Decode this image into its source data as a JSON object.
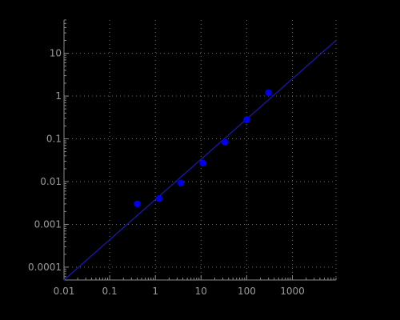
{
  "chart_data": {
    "type": "scatter",
    "title": "",
    "xlabel": "",
    "ylabel": "",
    "x_scale": "log",
    "y_scale": "log",
    "xlim": [
      0.01,
      9000
    ],
    "ylim": [
      5e-05,
      60
    ],
    "grid": true,
    "legend": "none",
    "x_ticks": [
      0.01,
      0.1,
      1,
      10,
      100,
      1000
    ],
    "x_tick_labels": [
      "0.01",
      "0.1",
      "1",
      "10",
      "100",
      "1000"
    ],
    "y_ticks": [
      0.0001,
      0.001,
      0.01,
      0.1,
      1,
      10
    ],
    "y_tick_labels": [
      "0.0001",
      "0.001",
      "0.01",
      "0.1",
      "1",
      "10"
    ],
    "series": [
      {
        "type": "scatter",
        "x": [
          0.4,
          1.2,
          3.6,
          11,
          33,
          100,
          300
        ],
        "y": [
          0.003,
          0.004,
          0.0093,
          0.027,
          0.084,
          0.28,
          1.2
        ]
      },
      {
        "type": "line",
        "x": [
          0.01,
          9000
        ],
        "y": [
          5e-05,
          20
        ]
      }
    ],
    "colors": {
      "background": "#000000",
      "points": "#0000ee",
      "fit_line": "#1a1ab4",
      "axis": "#8a8a8a",
      "grid": "#6e6e6e",
      "text": "#9a9a9a"
    }
  }
}
